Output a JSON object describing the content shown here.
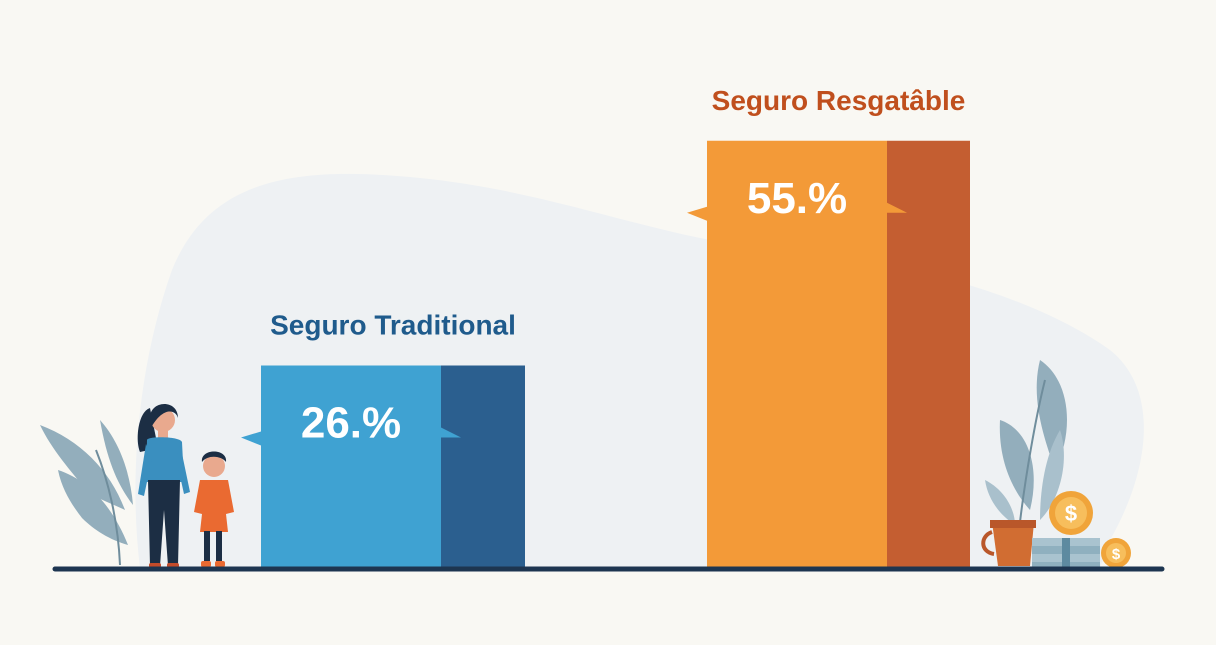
{
  "chart_data": {
    "type": "bar",
    "categories": [
      "Seguro Traditional",
      "Seguro Resgatâble"
    ],
    "values": [
      26,
      55
    ],
    "value_labels": [
      "26.%",
      "55.%"
    ],
    "ylim": [
      0,
      60
    ],
    "grid": false,
    "legend": "none"
  },
  "colors": {
    "traditional_front": "#3fa2d2",
    "traditional_side": "#2b5f8f",
    "traditional_label": "#1f5b8c",
    "resgatable_front": "#f39a38",
    "resgatable_side": "#c45e31",
    "resgatable_label": "#c04f1d",
    "baseline": "#1d3550",
    "background_blob": "#eef1f3"
  },
  "decorations": {
    "left": [
      "plant-icon",
      "woman-icon",
      "child-icon"
    ],
    "right": [
      "potted-plant-icon",
      "coin-icon",
      "cash-stack-icon"
    ],
    "coin_symbol": "$"
  }
}
